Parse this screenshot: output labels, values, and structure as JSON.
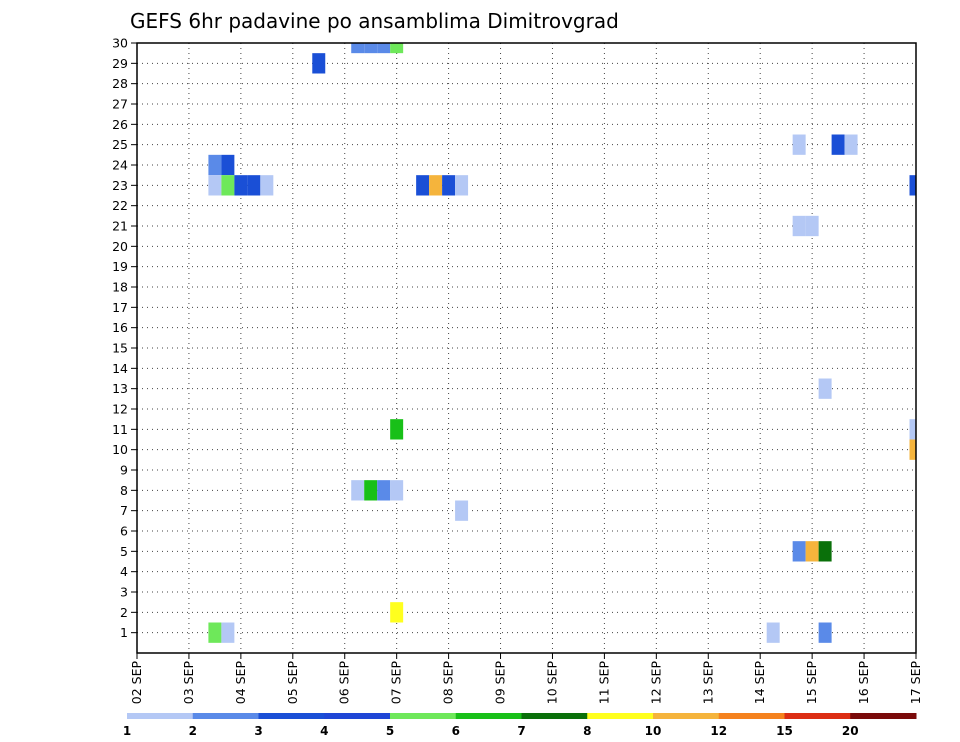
{
  "chart_data": {
    "type": "heatmap",
    "title": "GEFS 6hr padavine po ansamblima Dimitrovgrad",
    "xlabel": "",
    "ylabel": "",
    "x_ticks": [
      "02 SEP",
      "03 SEP",
      "04 SEP",
      "05 SEP",
      "06 SEP",
      "07 SEP",
      "08 SEP",
      "09 SEP",
      "10 SEP",
      "11 SEP",
      "12 SEP",
      "13 SEP",
      "14 SEP",
      "15 SEP",
      "16 SEP",
      "17 SEP"
    ],
    "x_range": [
      0,
      60
    ],
    "y_ticks": [
      1,
      2,
      3,
      4,
      5,
      6,
      7,
      8,
      9,
      10,
      11,
      12,
      13,
      14,
      15,
      16,
      17,
      18,
      19,
      20,
      21,
      22,
      23,
      24,
      25,
      26,
      27,
      28,
      29,
      30
    ],
    "y_range": [
      0,
      30
    ],
    "grid": true,
    "colorbar": {
      "labels": [
        "1",
        "2",
        "3",
        "4",
        "5",
        "6",
        "7",
        "8",
        "10",
        "12",
        "15",
        "20"
      ],
      "colors": [
        "#b4c8f5",
        "#5a8ae8",
        "#1a4fd6",
        "#1f46d6",
        "#6ee85a",
        "#18c018",
        "#0a700a",
        "#ffff1e",
        "#f5b43c",
        "#f5821e",
        "#dc2d14",
        "#7a0a0a"
      ]
    },
    "cells": [
      {
        "member": 30,
        "step": 17,
        "level": 2
      },
      {
        "member": 30,
        "step": 18,
        "level": 2
      },
      {
        "member": 30,
        "step": 19,
        "level": 2
      },
      {
        "member": 30,
        "step": 20,
        "level": 5
      },
      {
        "member": 29,
        "step": 14,
        "level": 3
      },
      {
        "member": 25,
        "step": 51,
        "level": 1
      },
      {
        "member": 25,
        "step": 54,
        "level": 3
      },
      {
        "member": 25,
        "step": 55,
        "level": 1
      },
      {
        "member": 24,
        "step": 6,
        "level": 2
      },
      {
        "member": 24,
        "step": 7,
        "level": 3
      },
      {
        "member": 23,
        "step": 6,
        "level": 1
      },
      {
        "member": 23,
        "step": 7,
        "level": 5
      },
      {
        "member": 23,
        "step": 8,
        "level": 3
      },
      {
        "member": 23,
        "step": 9,
        "level": 3
      },
      {
        "member": 23,
        "step": 10,
        "level": 1
      },
      {
        "member": 23,
        "step": 22,
        "level": 3
      },
      {
        "member": 23,
        "step": 23,
        "level": 10
      },
      {
        "member": 23,
        "step": 24,
        "level": 3
      },
      {
        "member": 23,
        "step": 25,
        "level": 1
      },
      {
        "member": 23,
        "step": 60,
        "level": 3
      },
      {
        "member": 21,
        "step": 51,
        "level": 1
      },
      {
        "member": 21,
        "step": 52,
        "level": 1
      },
      {
        "member": 13,
        "step": 53,
        "level": 1
      },
      {
        "member": 11,
        "step": 20,
        "level": 6
      },
      {
        "member": 11,
        "step": 60,
        "level": 1
      },
      {
        "member": 10,
        "step": 60,
        "level": 10
      },
      {
        "member": 8,
        "step": 17,
        "level": 1
      },
      {
        "member": 8,
        "step": 18,
        "level": 6
      },
      {
        "member": 8,
        "step": 19,
        "level": 2
      },
      {
        "member": 8,
        "step": 20,
        "level": 1
      },
      {
        "member": 7,
        "step": 25,
        "level": 1
      },
      {
        "member": 5,
        "step": 51,
        "level": 2
      },
      {
        "member": 5,
        "step": 52,
        "level": 10
      },
      {
        "member": 5,
        "step": 53,
        "level": 7
      },
      {
        "member": 2,
        "step": 20,
        "level": 8
      },
      {
        "member": 1,
        "step": 6,
        "level": 5
      },
      {
        "member": 1,
        "step": 7,
        "level": 1
      },
      {
        "member": 1,
        "step": 49,
        "level": 1
      },
      {
        "member": 1,
        "step": 53,
        "level": 2
      }
    ]
  }
}
